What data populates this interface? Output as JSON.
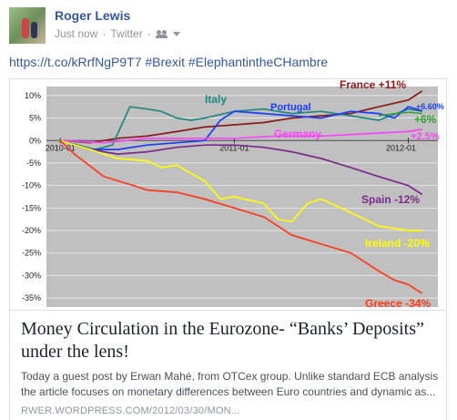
{
  "post": {
    "author": "Roger Lewis",
    "time": "Just now",
    "source": "Twitter",
    "separator": "·",
    "text_link": "https://t.co/kRrfNgP9T7",
    "hashtags": " #Brexit #ElephantintheCHambre"
  },
  "link_card": {
    "headline": "Money Circulation in the Eurozone- “Banks’ Deposits” under the lens!",
    "description": "Today a guest post by Erwan Mahé, from OTCex group. Unlike standard ECB analysis the article focuses on monetary differences between Euro countries and dynamic as...",
    "domain": "RWER.WORDPRESS.COM/2012/03/30/MON..."
  },
  "colors": {
    "link": "#365899",
    "plot_bg": "#c0c0c0",
    "france": "#8b1a1a",
    "italy": "#1f8a7a",
    "portugal": "#1a3cff",
    "germany": "#ff44ff",
    "spain": "#7a2a8a",
    "ireland": "#ffff00",
    "greece": "#ff3a1a",
    "extra": "#2ca02c"
  },
  "chart_data": {
    "type": "line",
    "x_ticks": [
      "2010-01",
      "2011-01",
      "2012-01"
    ],
    "y_ticks": [
      "10%",
      "5%",
      "0%",
      "-5%",
      "-10%",
      "-15%",
      "-20%",
      "-25%",
      "-30%",
      "-35%"
    ],
    "ylim": [
      -37,
      12
    ],
    "x_range": [
      2009.92,
      2012.17
    ],
    "series": [
      {
        "name": "France",
        "label": "France +11%",
        "color": "#8b1a1a",
        "points": [
          [
            2010.0,
            0
          ],
          [
            2010.17,
            -0.5
          ],
          [
            2010.33,
            0.5
          ],
          [
            2010.5,
            1
          ],
          [
            2010.67,
            2
          ],
          [
            2010.83,
            3
          ],
          [
            2011.0,
            3.5
          ],
          [
            2011.17,
            4
          ],
          [
            2011.33,
            5
          ],
          [
            2011.5,
            5.5
          ],
          [
            2011.67,
            6
          ],
          [
            2011.83,
            7.5
          ],
          [
            2012.0,
            9
          ],
          [
            2012.08,
            11
          ]
        ]
      },
      {
        "name": "Italy",
        "label": "Italy",
        "color": "#1f8a7a",
        "points": [
          [
            2010.0,
            0
          ],
          [
            2010.1,
            -1
          ],
          [
            2010.2,
            -2
          ],
          [
            2010.3,
            -1
          ],
          [
            2010.4,
            7.5
          ],
          [
            2010.5,
            7
          ],
          [
            2010.58,
            6.5
          ],
          [
            2010.67,
            5
          ],
          [
            2010.75,
            4.5
          ],
          [
            2010.83,
            5
          ],
          [
            2011.0,
            6.5
          ],
          [
            2011.17,
            7
          ],
          [
            2011.33,
            6
          ],
          [
            2011.5,
            6.5
          ],
          [
            2011.67,
            5.5
          ],
          [
            2011.83,
            4.5
          ],
          [
            2012.0,
            7
          ],
          [
            2012.08,
            6.5
          ]
        ]
      },
      {
        "name": "Portugal",
        "label": "Portugal",
        "color": "#1a3cff",
        "points": [
          [
            2010.0,
            0
          ],
          [
            2010.17,
            -2
          ],
          [
            2010.33,
            -2
          ],
          [
            2010.5,
            -1
          ],
          [
            2010.67,
            -0.5
          ],
          [
            2010.83,
            0
          ],
          [
            2010.92,
            4.5
          ],
          [
            2011.0,
            6.5
          ],
          [
            2011.17,
            6
          ],
          [
            2011.33,
            5.5
          ],
          [
            2011.5,
            5
          ],
          [
            2011.67,
            6.5
          ],
          [
            2011.83,
            6
          ],
          [
            2011.92,
            5
          ],
          [
            2012.0,
            7.5
          ],
          [
            2012.08,
            6.6
          ]
        ]
      },
      {
        "name": "Germany",
        "label": "Germany",
        "color": "#ff44ff",
        "points": [
          [
            2010.0,
            0
          ],
          [
            2010.25,
            -0.5
          ],
          [
            2010.5,
            0.5
          ],
          [
            2010.75,
            0.5
          ],
          [
            2011.0,
            0.5
          ],
          [
            2011.25,
            1
          ],
          [
            2011.5,
            1
          ],
          [
            2011.75,
            1.5
          ],
          [
            2012.0,
            2
          ],
          [
            2012.08,
            2.5
          ]
        ]
      },
      {
        "name": "Extra",
        "label": "+6%",
        "color": "#2ca02c",
        "points": [
          [
            2011.83,
            5.5
          ],
          [
            2011.92,
            6
          ],
          [
            2012.0,
            6.3
          ],
          [
            2012.08,
            6
          ]
        ]
      },
      {
        "name": "Spain",
        "label": "Spain -12%",
        "color": "#7a2a8a",
        "points": [
          [
            2010.0,
            0
          ],
          [
            2010.17,
            -2
          ],
          [
            2010.33,
            -3
          ],
          [
            2010.5,
            -2.5
          ],
          [
            2010.67,
            -1.5
          ],
          [
            2010.83,
            -1
          ],
          [
            2011.0,
            -1
          ],
          [
            2011.17,
            -1.5
          ],
          [
            2011.33,
            -2.5
          ],
          [
            2011.5,
            -4
          ],
          [
            2011.67,
            -6
          ],
          [
            2011.83,
            -8
          ],
          [
            2012.0,
            -10
          ],
          [
            2012.08,
            -12
          ]
        ]
      },
      {
        "name": "Ireland",
        "label": "Ireland -20%",
        "color": "#ffff00",
        "points": [
          [
            2010.0,
            0
          ],
          [
            2010.17,
            -2
          ],
          [
            2010.33,
            -4
          ],
          [
            2010.5,
            -4.5
          ],
          [
            2010.58,
            -6
          ],
          [
            2010.67,
            -5.5
          ],
          [
            2010.83,
            -9
          ],
          [
            2010.92,
            -13
          ],
          [
            2011.0,
            -12.5
          ],
          [
            2011.17,
            -14
          ],
          [
            2011.25,
            -17.5
          ],
          [
            2011.33,
            -18
          ],
          [
            2011.42,
            -14
          ],
          [
            2011.5,
            -13
          ],
          [
            2011.67,
            -16
          ],
          [
            2011.83,
            -19
          ],
          [
            2012.0,
            -20
          ],
          [
            2012.08,
            -20
          ]
        ]
      },
      {
        "name": "Greece",
        "label": "Greece -34%",
        "color": "#ff3a1a",
        "points": [
          [
            2010.0,
            0
          ],
          [
            2010.08,
            -3
          ],
          [
            2010.25,
            -8
          ],
          [
            2010.42,
            -10
          ],
          [
            2010.5,
            -11
          ],
          [
            2010.67,
            -11.5
          ],
          [
            2010.83,
            -13
          ],
          [
            2011.0,
            -15
          ],
          [
            2011.17,
            -17
          ],
          [
            2011.33,
            -21
          ],
          [
            2011.5,
            -23
          ],
          [
            2011.67,
            -25
          ],
          [
            2011.83,
            -29
          ],
          [
            2011.92,
            -31
          ],
          [
            2012.0,
            -32
          ],
          [
            2012.08,
            -34
          ]
        ]
      }
    ]
  }
}
